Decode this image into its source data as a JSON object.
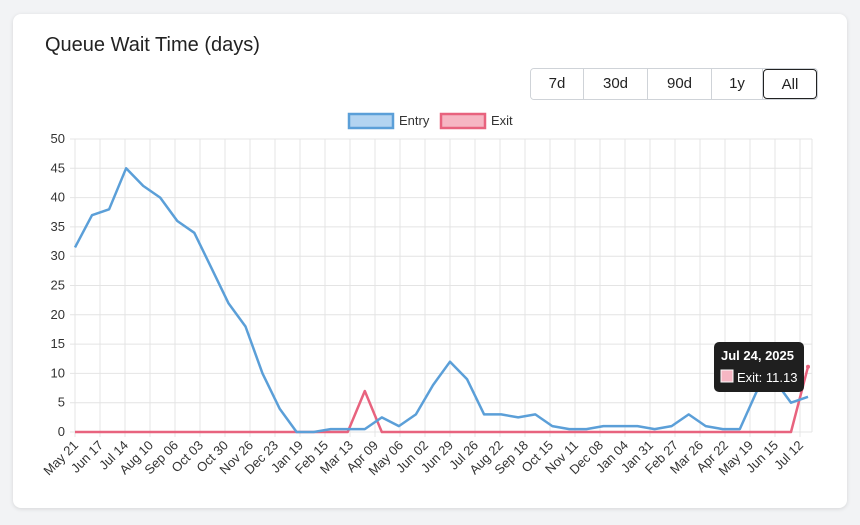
{
  "card": {
    "title": "Queue Wait Time (days)",
    "ranges": [
      "7d",
      "30d",
      "90d",
      "1y",
      "All"
    ],
    "active_range": "All"
  },
  "colors": {
    "entry_line": "#5b9fd8",
    "entry_fill": "#b3d4f1",
    "exit_line": "#e8637e",
    "exit_fill": "#f6b6c3",
    "tooltip_bg": "#1f1f1f"
  },
  "chart_data": {
    "type": "line",
    "title": "Queue Wait Time (days)",
    "xlabel": "",
    "ylabel": "",
    "ylim": [
      0,
      50
    ],
    "yticks": [
      0,
      5,
      10,
      15,
      20,
      25,
      30,
      35,
      40,
      45,
      50
    ],
    "grid": true,
    "legend_position": "top-center",
    "x_tick_labels": [
      "May 21",
      "Jun 17",
      "Jul 14",
      "Aug 10",
      "Sep 06",
      "Oct 03",
      "Oct 30",
      "Nov 26",
      "Dec 23",
      "Jan 19",
      "Feb 15",
      "Mar 13",
      "Apr 09",
      "May 06",
      "Jun 02",
      "Jun 29",
      "Jul 26",
      "Aug 22",
      "Sep 18",
      "Oct 15",
      "Nov 11",
      "Dec 08",
      "Jan 04",
      "Jan 31",
      "Feb 27",
      "Mar 26",
      "Apr 22",
      "May 19",
      "Jun 15",
      "Jul 12"
    ],
    "x": [
      "May 21",
      "Jun 03",
      "Jun 10",
      "Jun 17",
      "Jun 24",
      "Jul 01",
      "Jul 14",
      "Jul 27",
      "Aug 10",
      "Aug 23",
      "Sep 06",
      "Sep 20",
      "Oct 03",
      "Oct 10",
      "Oct 30",
      "Nov 26",
      "Dec 23",
      "Jan 19",
      "Feb 15",
      "Mar 13",
      "Mar 27",
      "Apr 09",
      "Apr 22",
      "May 06",
      "May 20",
      "Jun 02",
      "Jun 29",
      "Jul 26",
      "Aug 22",
      "Sep 18",
      "Oct 15",
      "Nov 11",
      "Dec 08",
      "Jan 04",
      "Jan 31",
      "Feb 27",
      "Mar 26",
      "Apr 22",
      "May 19",
      "Jun 01",
      "Jun 15",
      "Jun 29",
      "Jul 12",
      "Jul 24"
    ],
    "series": [
      {
        "name": "Entry",
        "values": [
          31.5,
          37,
          38,
          45,
          42,
          40,
          36,
          34,
          28,
          22,
          18,
          10,
          4,
          0,
          0,
          0.5,
          0.5,
          0.5,
          2.5,
          1,
          3,
          8,
          12,
          9,
          3,
          3,
          2.5,
          3,
          1,
          0.5,
          0.5,
          1,
          1,
          1,
          0.5,
          1,
          3,
          1,
          0.5,
          0.5,
          7,
          9,
          5,
          6
        ]
      },
      {
        "name": "Exit",
        "values": [
          0,
          0,
          0,
          0,
          0,
          0,
          0,
          0,
          0,
          0,
          0,
          0,
          0,
          0,
          0,
          0,
          0,
          7,
          0,
          0,
          0,
          0,
          0,
          0,
          0,
          0,
          0,
          0,
          0,
          0,
          0,
          0,
          0,
          0,
          0,
          0,
          0,
          0,
          0,
          0,
          0,
          0,
          0,
          11.13
        ]
      }
    ],
    "tooltip": {
      "title": "Jul 24, 2025",
      "label": "Exit: 11.13"
    }
  }
}
